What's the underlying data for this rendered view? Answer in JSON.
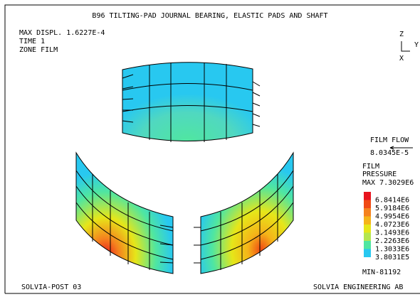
{
  "header": {
    "title": "B96 TILTING-PAD JOURNAL BEARING, ELASTIC PADS AND SHAFT"
  },
  "info": [
    "MAX DISPL. 1.6227E-4",
    "TIME 1",
    "ZONE FILM"
  ],
  "axes": {
    "z": "Z",
    "y": "Y",
    "x": "X"
  },
  "film_flow": {
    "label": "FILM FLOW",
    "value": "8.0345E-5"
  },
  "legend": {
    "title": [
      "FILM",
      "PRESSURE"
    ],
    "max": "MAX 7.3029E6",
    "levels": [
      {
        "label": "6.8414E6",
        "color": "#e8141e"
      },
      {
        "label": "5.9184E6",
        "color": "#f04a14"
      },
      {
        "label": "4.9954E6",
        "color": "#f5821e"
      },
      {
        "label": "4.0723E6",
        "color": "#f5b419"
      },
      {
        "label": "3.1493E6",
        "color": "#e6e619"
      },
      {
        "label": "2.2263E6",
        "color": "#b4e650"
      },
      {
        "label": "1.3033E6",
        "color": "#50e6a0"
      },
      {
        "label": "3.8031E5",
        "color": "#28c8f0"
      }
    ],
    "min": "MIN-81192"
  },
  "footer": {
    "left": "SOLVIA-POST 03",
    "right": "SOLVIA ENGINEERING AB"
  }
}
